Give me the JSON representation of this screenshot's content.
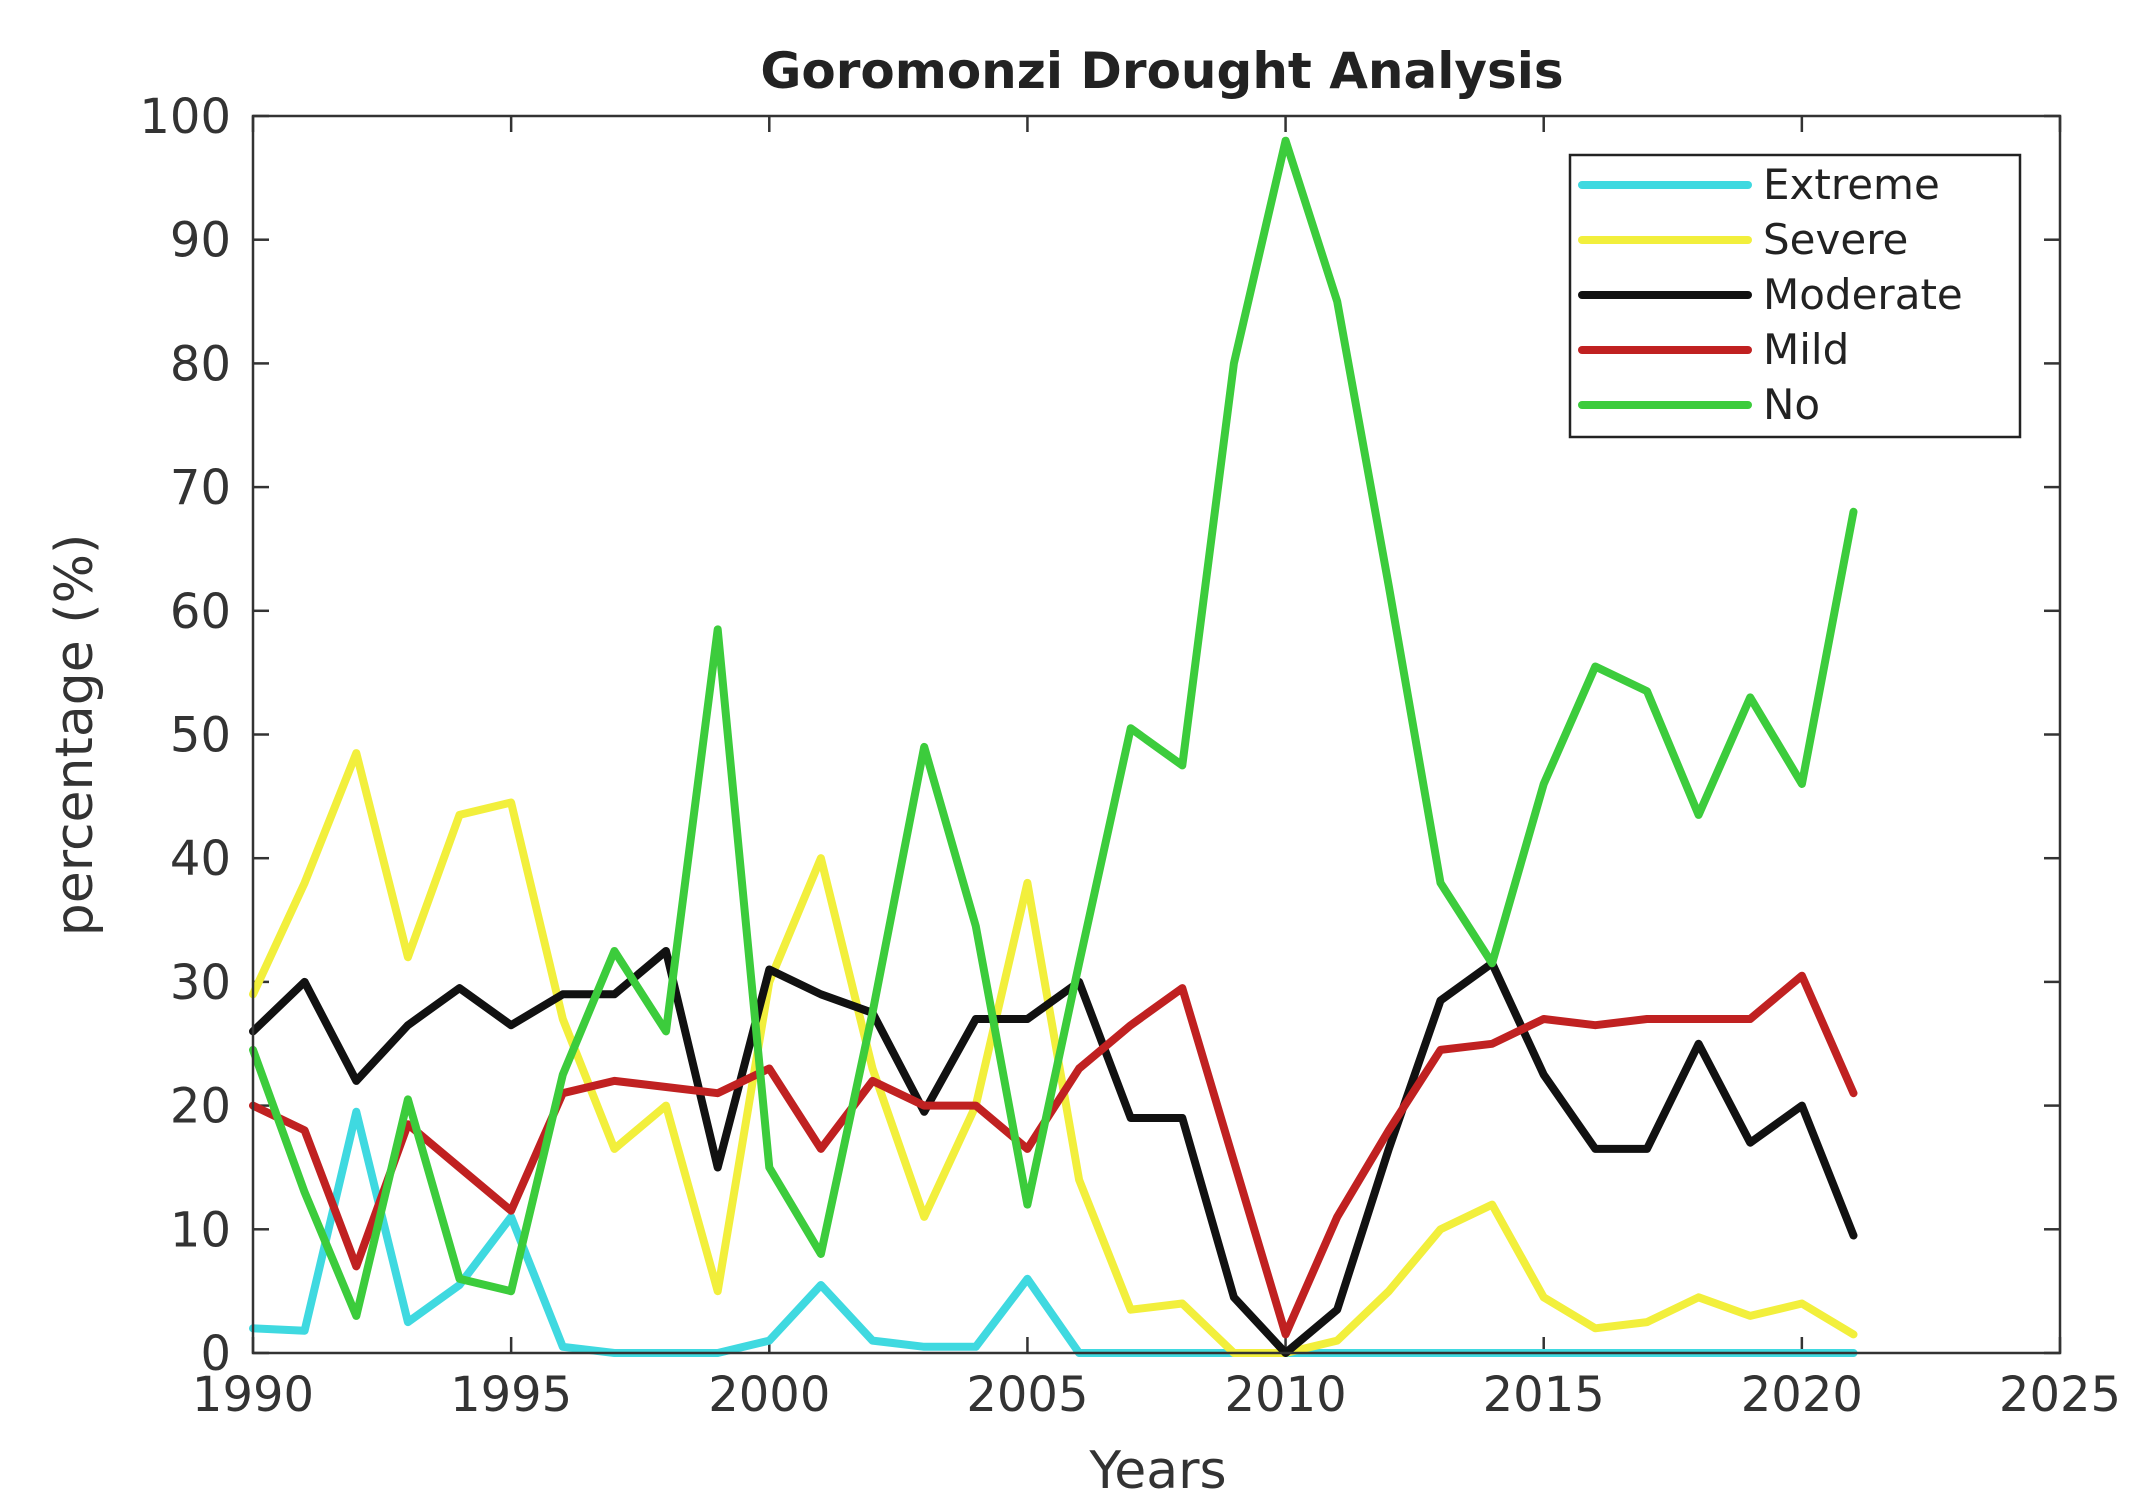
{
  "chart_data": {
    "type": "line",
    "title": "Goromonzi Drought Analysis",
    "xlabel": "Years",
    "ylabel": "percentage (%)",
    "xlim": [
      1990,
      2025
    ],
    "ylim": [
      0,
      100
    ],
    "xticks": [
      1990,
      1995,
      2000,
      2005,
      2010,
      2015,
      2020,
      2025
    ],
    "yticks": [
      0,
      10,
      20,
      30,
      40,
      50,
      60,
      70,
      80,
      90,
      100
    ],
    "legend_position": "top-right",
    "grid": false,
    "x": [
      1990,
      1991,
      1992,
      1993,
      1994,
      1995,
      1996,
      1997,
      1998,
      1999,
      2000,
      2001,
      2002,
      2003,
      2004,
      2005,
      2006,
      2007,
      2008,
      2009,
      2010,
      2011,
      2012,
      2013,
      2014,
      2015,
      2016,
      2017,
      2018,
      2019,
      2020,
      2021
    ],
    "series": [
      {
        "name": "Extreme",
        "color": "#3fd9e0",
        "values": [
          2,
          1.8,
          19.5,
          2.5,
          5.5,
          11,
          0.5,
          0,
          0,
          0,
          1,
          5.5,
          1,
          0.5,
          0.5,
          6,
          0,
          0,
          0,
          0,
          0,
          0,
          0,
          0,
          0,
          0,
          0,
          0,
          0,
          0,
          0,
          0
        ]
      },
      {
        "name": "Severe",
        "color": "#f2ef3c",
        "values": [
          29,
          38,
          48.5,
          32,
          43.5,
          44.5,
          27,
          16.5,
          20,
          5,
          30,
          40,
          23,
          11,
          20,
          38,
          14,
          3.5,
          4,
          0,
          0,
          1,
          5,
          10,
          12,
          4.5,
          2,
          2.5,
          4.5,
          3,
          4,
          1.5
        ]
      },
      {
        "name": "Moderate",
        "color": "#111111",
        "values": [
          26,
          30,
          22,
          26.5,
          29.5,
          26.5,
          29,
          29,
          32.5,
          15,
          31,
          29,
          27.5,
          19.5,
          27,
          27,
          30,
          19,
          19,
          4.5,
          0,
          3.5,
          16.5,
          28.5,
          31.5,
          22.5,
          16.5,
          16.5,
          25,
          17,
          20,
          9.5
        ]
      },
      {
        "name": "Mild",
        "color": "#c02121",
        "values": [
          20,
          18,
          7,
          18.5,
          15,
          11.5,
          21,
          22,
          21.5,
          21,
          23,
          16.5,
          22,
          20,
          20,
          16.5,
          23,
          26.5,
          29.5,
          15.5,
          1.5,
          11,
          18,
          24.5,
          25,
          27,
          26.5,
          27,
          27,
          27,
          30.5,
          21
        ]
      },
      {
        "name": "No",
        "color": "#3ccc3c",
        "values": [
          24.5,
          13,
          3,
          20.5,
          6,
          5,
          22.5,
          32.5,
          26,
          58.5,
          15,
          8,
          27.5,
          49,
          34.5,
          12,
          31.5,
          50.5,
          47.5,
          80,
          98,
          85,
          62,
          38,
          31.5,
          46,
          55.5,
          53.5,
          43.5,
          53,
          46,
          68
        ]
      }
    ]
  }
}
